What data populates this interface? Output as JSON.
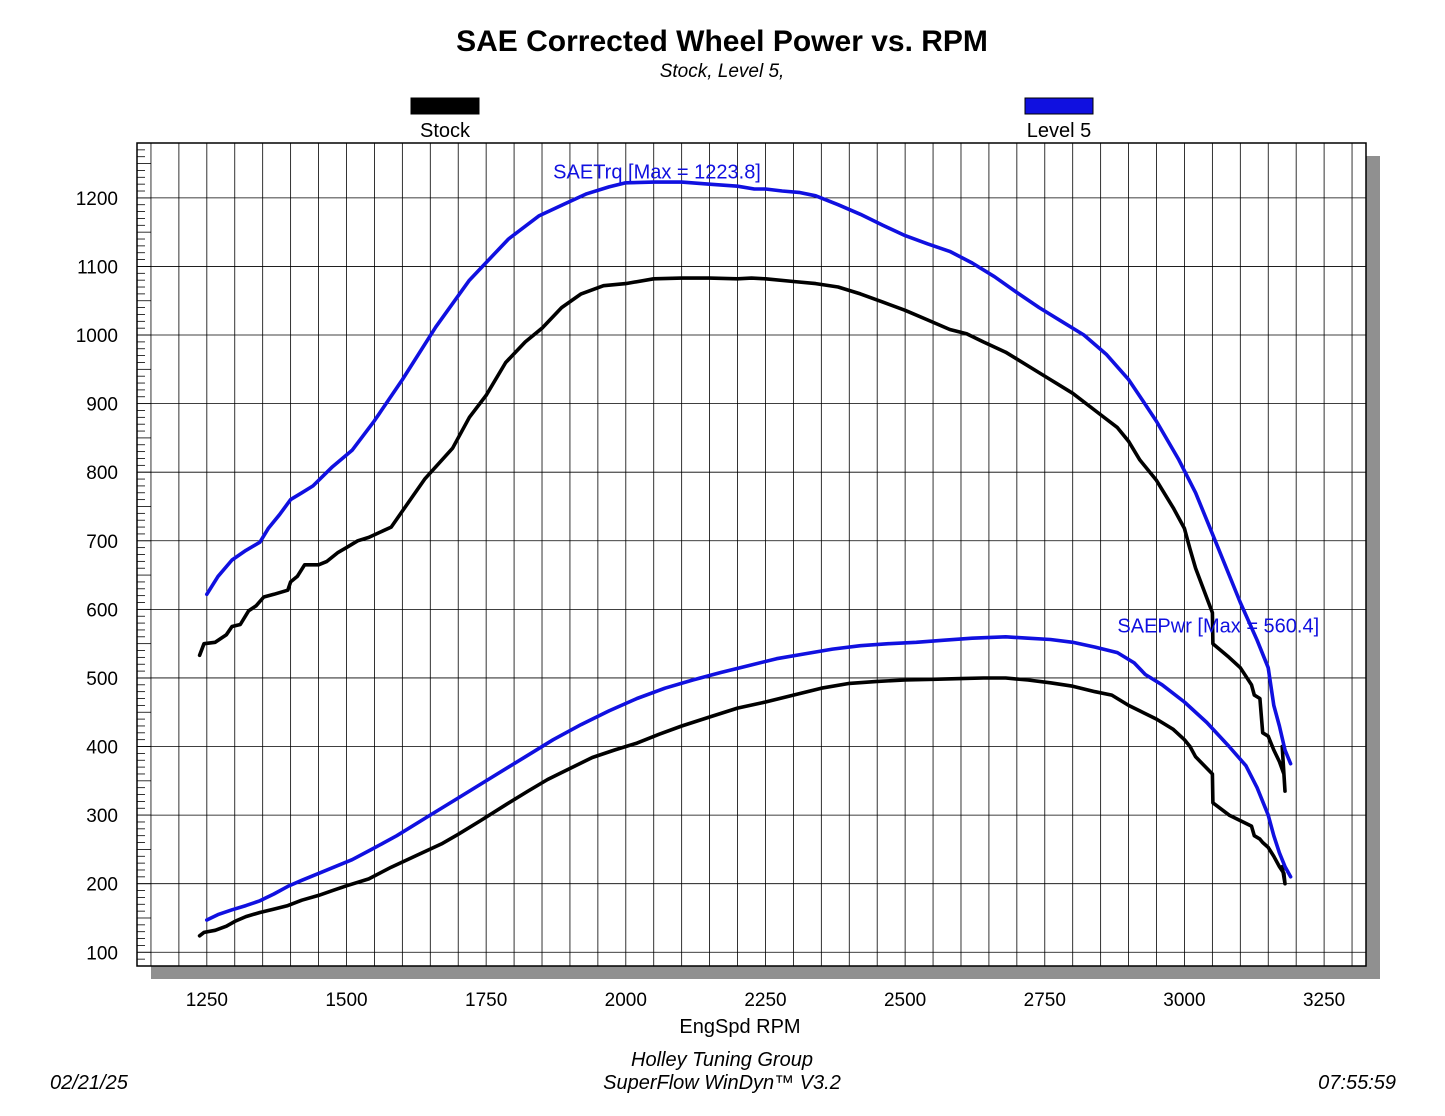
{
  "header": {
    "title": "SAE Corrected Wheel Power vs. RPM",
    "subtitle": "Stock, Level 5,"
  },
  "footer": {
    "date": "02/21/25",
    "line1": "Holley Tuning Group",
    "line2": "SuperFlow WinDyn™ V3.2",
    "time": "07:55:59"
  },
  "colors": {
    "stock": "#000000",
    "level5": "#1010e0",
    "shadow": "#909090"
  },
  "chart_data": {
    "type": "line",
    "title": "SAE Corrected Wheel Power vs. RPM",
    "subtitle": "Stock, Level 5,",
    "xlabel": "EngSpd RPM",
    "ylabel": "",
    "xlim": [
      1125,
      3325
    ],
    "ylim": [
      80,
      1280
    ],
    "xticks": [
      "1250",
      "1500",
      "1750",
      "2000",
      "2250",
      "2500",
      "2750",
      "3000",
      "3250"
    ],
    "yticks": [
      "100",
      "200",
      "300",
      "400",
      "500",
      "600",
      "700",
      "800",
      "900",
      "1000",
      "1100",
      "1200"
    ],
    "legend_position": "top",
    "grid": true,
    "legend": [
      {
        "name": "Stock",
        "color": "#000000"
      },
      {
        "name": "Level 5",
        "color": "#1010e0"
      }
    ],
    "annotations": [
      {
        "text": "SAETrq [Max = 1223.8]",
        "x": 1870,
        "y": 1228
      },
      {
        "text": "SAEPwr [Max = 560.4]",
        "x": 2880,
        "y": 566
      }
    ],
    "series": [
      {
        "name": "Stock",
        "metric": "SAETrq",
        "color": "#000000",
        "x": [
          1237,
          1245,
          1265,
          1285,
          1295,
          1310,
          1325,
          1338,
          1352,
          1370,
          1395,
          1400,
          1412,
          1425,
          1450,
          1465,
          1485,
          1500,
          1520,
          1540,
          1580,
          1640,
          1690,
          1720,
          1750,
          1785,
          1820,
          1850,
          1885,
          1920,
          1960,
          2000,
          2050,
          2100,
          2150,
          2200,
          2225,
          2250,
          2300,
          2340,
          2380,
          2420,
          2460,
          2500,
          2540,
          2580,
          2610,
          2640,
          2680,
          2720,
          2760,
          2800,
          2840,
          2880,
          2900,
          2920,
          2950,
          2980,
          3000,
          3010,
          3020,
          3050,
          3051,
          3080,
          3100,
          3120,
          3125,
          3135,
          3140,
          3150,
          3160,
          3170,
          3178,
          3180,
          3175
        ],
        "y": [
          533,
          550,
          552,
          563,
          575,
          578,
          598,
          605,
          618,
          622,
          628,
          640,
          648,
          665,
          665,
          670,
          683,
          690,
          700,
          705,
          720,
          790,
          835,
          880,
          912,
          960,
          990,
          1010,
          1040,
          1060,
          1072,
          1075,
          1082,
          1083,
          1083,
          1082,
          1083,
          1082,
          1078,
          1075,
          1070,
          1060,
          1048,
          1036,
          1022,
          1008,
          1002,
          990,
          975,
          955,
          935,
          915,
          890,
          865,
          845,
          818,
          788,
          748,
          718,
          688,
          660,
          595,
          550,
          530,
          515,
          490,
          475,
          470,
          420,
          415,
          395,
          378,
          360,
          335,
          400
        ]
      },
      {
        "name": "Level 5",
        "metric": "SAETrq",
        "color": "#1010e0",
        "x": [
          1250,
          1270,
          1295,
          1320,
          1345,
          1360,
          1380,
          1400,
          1420,
          1440,
          1475,
          1510,
          1550,
          1600,
          1660,
          1720,
          1790,
          1845,
          1890,
          1930,
          1970,
          2000,
          2050,
          2100,
          2150,
          2200,
          2230,
          2250,
          2280,
          2310,
          2340,
          2380,
          2420,
          2460,
          2500,
          2540,
          2580,
          2620,
          2660,
          2700,
          2740,
          2780,
          2820,
          2860,
          2900,
          2925,
          2950,
          2990,
          3020,
          3060,
          3100,
          3130,
          3150,
          3160,
          3170,
          3180,
          3190
        ],
        "y": [
          622,
          648,
          672,
          686,
          698,
          718,
          738,
          760,
          770,
          780,
          808,
          832,
          875,
          935,
          1012,
          1080,
          1140,
          1174,
          1191,
          1206,
          1216,
          1222,
          1223,
          1223,
          1220,
          1217,
          1213,
          1213,
          1210,
          1208,
          1203,
          1190,
          1176,
          1160,
          1145,
          1133,
          1122,
          1105,
          1085,
          1062,
          1040,
          1020,
          1000,
          972,
          935,
          905,
          874,
          818,
          770,
          690,
          610,
          555,
          515,
          460,
          430,
          395,
          375
        ]
      },
      {
        "name": "Stock",
        "metric": "SAEPwr",
        "color": "#000000",
        "x": [
          1237,
          1245,
          1265,
          1285,
          1300,
          1320,
          1345,
          1370,
          1395,
          1420,
          1450,
          1475,
          1500,
          1540,
          1580,
          1630,
          1670,
          1700,
          1740,
          1785,
          1825,
          1860,
          1900,
          1940,
          1980,
          2020,
          2060,
          2100,
          2150,
          2200,
          2250,
          2300,
          2350,
          2400,
          2450,
          2500,
          2550,
          2600,
          2640,
          2680,
          2720,
          2760,
          2800,
          2840,
          2870,
          2900,
          2920,
          2950,
          2980,
          3000,
          3010,
          3020,
          3050,
          3051,
          3080,
          3100,
          3120,
          3125,
          3135,
          3140,
          3150,
          3160,
          3170,
          3178,
          3180,
          3175
        ],
        "y": [
          124,
          129,
          132,
          138,
          145,
          152,
          158,
          163,
          168,
          176,
          183,
          190,
          197,
          207,
          224,
          243,
          258,
          272,
          292,
          315,
          335,
          352,
          368,
          384,
          395,
          405,
          418,
          430,
          443,
          456,
          465,
          475,
          485,
          492,
          495,
          497,
          498,
          499,
          500,
          500,
          497,
          493,
          488,
          480,
          475,
          460,
          452,
          440,
          425,
          410,
          400,
          385,
          360,
          318,
          300,
          292,
          284,
          270,
          265,
          260,
          253,
          240,
          225,
          215,
          200,
          225
        ]
      },
      {
        "name": "Level 5",
        "metric": "SAEPwr",
        "color": "#1010e0",
        "x": [
          1250,
          1270,
          1295,
          1320,
          1345,
          1370,
          1395,
          1420,
          1450,
          1480,
          1510,
          1545,
          1590,
          1640,
          1700,
          1760,
          1820,
          1870,
          1920,
          1970,
          2020,
          2070,
          2120,
          2170,
          2220,
          2270,
          2320,
          2370,
          2420,
          2470,
          2520,
          2570,
          2620,
          2680,
          2720,
          2760,
          2800,
          2840,
          2880,
          2910,
          2930,
          2960,
          3000,
          3040,
          3080,
          3110,
          3130,
          3150,
          3160,
          3170,
          3180,
          3190
        ],
        "y": [
          147,
          155,
          162,
          168,
          175,
          185,
          196,
          205,
          215,
          225,
          235,
          250,
          270,
          295,
          325,
          355,
          385,
          410,
          432,
          452,
          470,
          485,
          497,
          508,
          518,
          528,
          535,
          542,
          547,
          550,
          552,
          555,
          558,
          560,
          558,
          556,
          552,
          545,
          537,
          522,
          505,
          490,
          465,
          435,
          400,
          372,
          340,
          300,
          270,
          245,
          225,
          210
        ]
      }
    ]
  }
}
